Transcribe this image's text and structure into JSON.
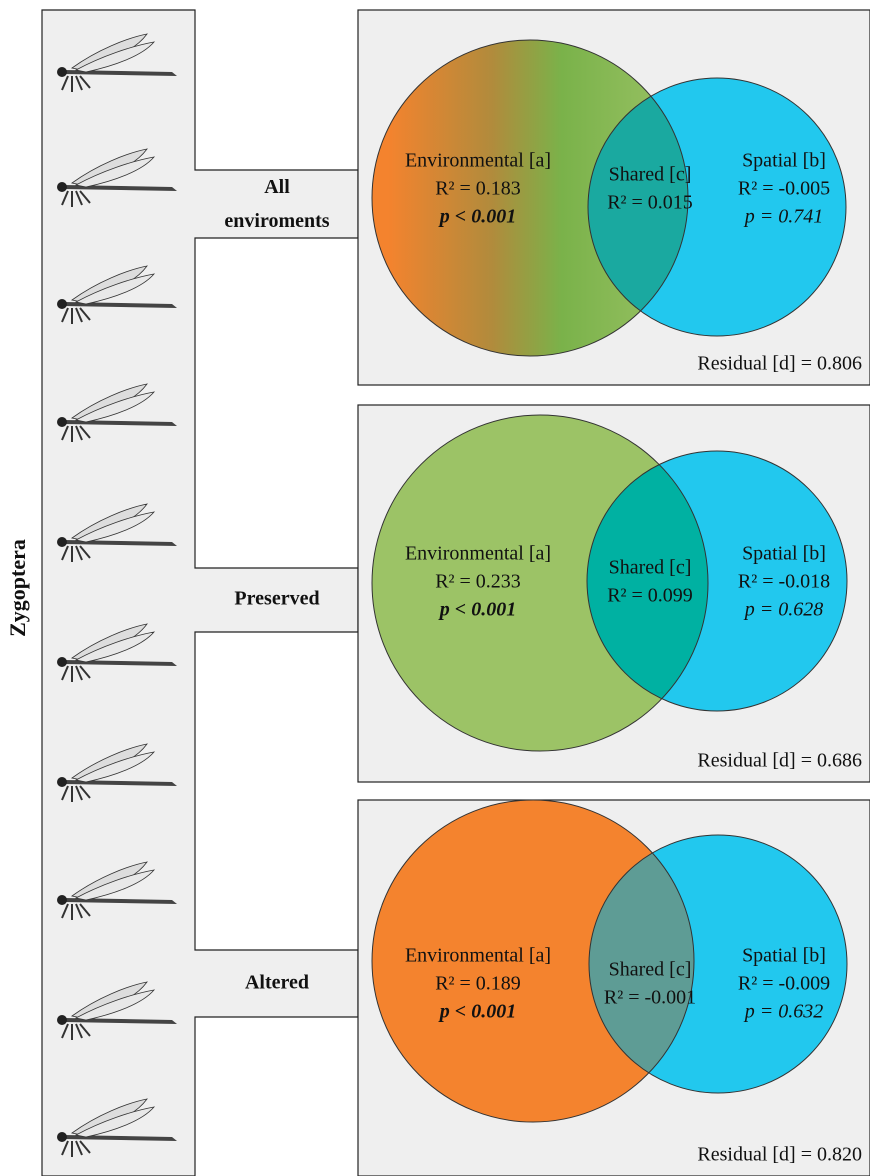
{
  "side_label": "Zygoptera",
  "panels": [
    {
      "group": "All enviroments",
      "environmental": {
        "label": "Environmental [a]",
        "r2": "R² = 0.183",
        "p": "p < 0.001"
      },
      "shared": {
        "label": "Shared [c]",
        "r2": "R² = 0.015"
      },
      "spatial": {
        "label": "Spatial [b]",
        "r2": "R² = -0.005",
        "p": "p = 0.741"
      },
      "residual": "Residual [d] = 0.806"
    },
    {
      "group": "Preserved",
      "environmental": {
        "label": "Environmental [a]",
        "r2": "R² = 0.233",
        "p": "p < 0.001"
      },
      "shared": {
        "label": "Shared [c]",
        "r2": "R² = 0.099"
      },
      "spatial": {
        "label": "Spatial [b]",
        "r2": "R² = -0.018",
        "p": "p = 0.628"
      },
      "residual": "Residual [d] = 0.686"
    },
    {
      "group": "Altered",
      "environmental": {
        "label": "Environmental [a]",
        "r2": "R² = 0.189",
        "p": "p < 0.001"
      },
      "shared": {
        "label": "Shared [c]",
        "r2": "R² = -0.001"
      },
      "spatial": {
        "label": "Spatial [b]",
        "r2": "R² = -0.009",
        "p": "p = 0.632"
      },
      "residual": "Residual [d] = 0.820"
    }
  ]
}
